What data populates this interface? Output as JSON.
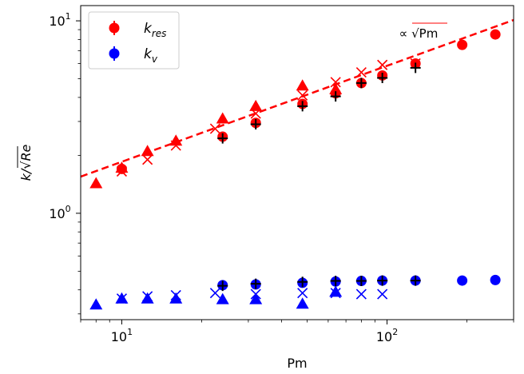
{
  "chart_data": {
    "type": "scatter",
    "xlabel": "Pm",
    "ylabel": "k/√Re",
    "xscale": "log",
    "yscale": "log",
    "xlim": [
      7,
      300
    ],
    "ylim": [
      0.28,
      12
    ],
    "x_ticks": [
      {
        "value": 10,
        "base": "10",
        "exp": "1"
      },
      {
        "value": 100,
        "base": "10",
        "exp": "2"
      }
    ],
    "y_ticks": [
      {
        "value": 1,
        "base": "10",
        "exp": "0"
      },
      {
        "value": 10,
        "base": "10",
        "exp": "1"
      }
    ],
    "legend": {
      "placement": "upper-left",
      "entries": [
        {
          "main": "k",
          "sub": "res",
          "color": "#ff0000"
        },
        {
          "main": "k",
          "sub": "v",
          "color": "#0000ff"
        }
      ]
    },
    "fit_line": {
      "label": "∝ √Pm",
      "color": "#ff0000",
      "style": "dashed",
      "points": [
        [
          7,
          1.55
        ],
        [
          300,
          10.1
        ]
      ]
    },
    "series": [
      {
        "color": "#ff0000",
        "marker": "circle",
        "points": [
          [
            10,
            1.7
          ],
          [
            24,
            2.5
          ],
          [
            32,
            2.95
          ],
          [
            48,
            3.7
          ],
          [
            64,
            4.2
          ],
          [
            80,
            4.75
          ],
          [
            96,
            5.2
          ],
          [
            128,
            6.0
          ],
          [
            192,
            7.5
          ],
          [
            256,
            8.5
          ]
        ]
      },
      {
        "color": "#ff0000",
        "marker": "triangle",
        "points": [
          [
            8,
            1.43
          ],
          [
            10,
            1.72
          ],
          [
            12.5,
            2.1
          ],
          [
            16,
            2.38
          ],
          [
            24,
            3.1
          ],
          [
            32,
            3.6
          ],
          [
            48,
            4.6
          ],
          [
            64,
            4.4
          ]
        ]
      },
      {
        "color": "#ff0000",
        "marker": "x",
        "points": [
          [
            10,
            1.65
          ],
          [
            12.5,
            1.9
          ],
          [
            16,
            2.25
          ],
          [
            22.5,
            2.75
          ],
          [
            32,
            3.3
          ],
          [
            48,
            4.1
          ],
          [
            64,
            4.8
          ],
          [
            80,
            5.4
          ],
          [
            96,
            5.9
          ],
          [
            128,
            6.0
          ]
        ]
      },
      {
        "color": "#000000",
        "marker": "plus",
        "points": [
          [
            24,
            2.45
          ],
          [
            32,
            2.9
          ],
          [
            48,
            3.6
          ],
          [
            64,
            4.05
          ],
          [
            80,
            4.75
          ],
          [
            96,
            5.05
          ],
          [
            128,
            5.7
          ]
        ]
      },
      {
        "color": "#0000ff",
        "marker": "circle",
        "points": [
          [
            24,
            0.423
          ],
          [
            32,
            0.427
          ],
          [
            48,
            0.435
          ],
          [
            64,
            0.442
          ],
          [
            80,
            0.445
          ],
          [
            96,
            0.447
          ],
          [
            128,
            0.447
          ],
          [
            192,
            0.447
          ],
          [
            256,
            0.45
          ]
        ]
      },
      {
        "color": "#0000ff",
        "marker": "triangle",
        "points": [
          [
            8,
            0.335
          ],
          [
            10,
            0.36
          ],
          [
            12.5,
            0.36
          ],
          [
            16,
            0.36
          ],
          [
            24,
            0.357
          ],
          [
            32,
            0.357
          ],
          [
            48,
            0.338
          ],
          [
            64,
            0.39
          ]
        ]
      },
      {
        "color": "#0000ff",
        "marker": "x",
        "points": [
          [
            10,
            0.36
          ],
          [
            12.5,
            0.37
          ],
          [
            16,
            0.375
          ],
          [
            22.5,
            0.385
          ],
          [
            32,
            0.38
          ],
          [
            48,
            0.385
          ],
          [
            64,
            0.385
          ],
          [
            80,
            0.38
          ],
          [
            96,
            0.38
          ]
        ]
      },
      {
        "color": "#000000",
        "marker": "plus",
        "points": [
          [
            24,
            0.42
          ],
          [
            32,
            0.43
          ],
          [
            48,
            0.44
          ],
          [
            64,
            0.445
          ],
          [
            80,
            0.445
          ],
          [
            96,
            0.447
          ],
          [
            128,
            0.447
          ]
        ]
      }
    ]
  }
}
